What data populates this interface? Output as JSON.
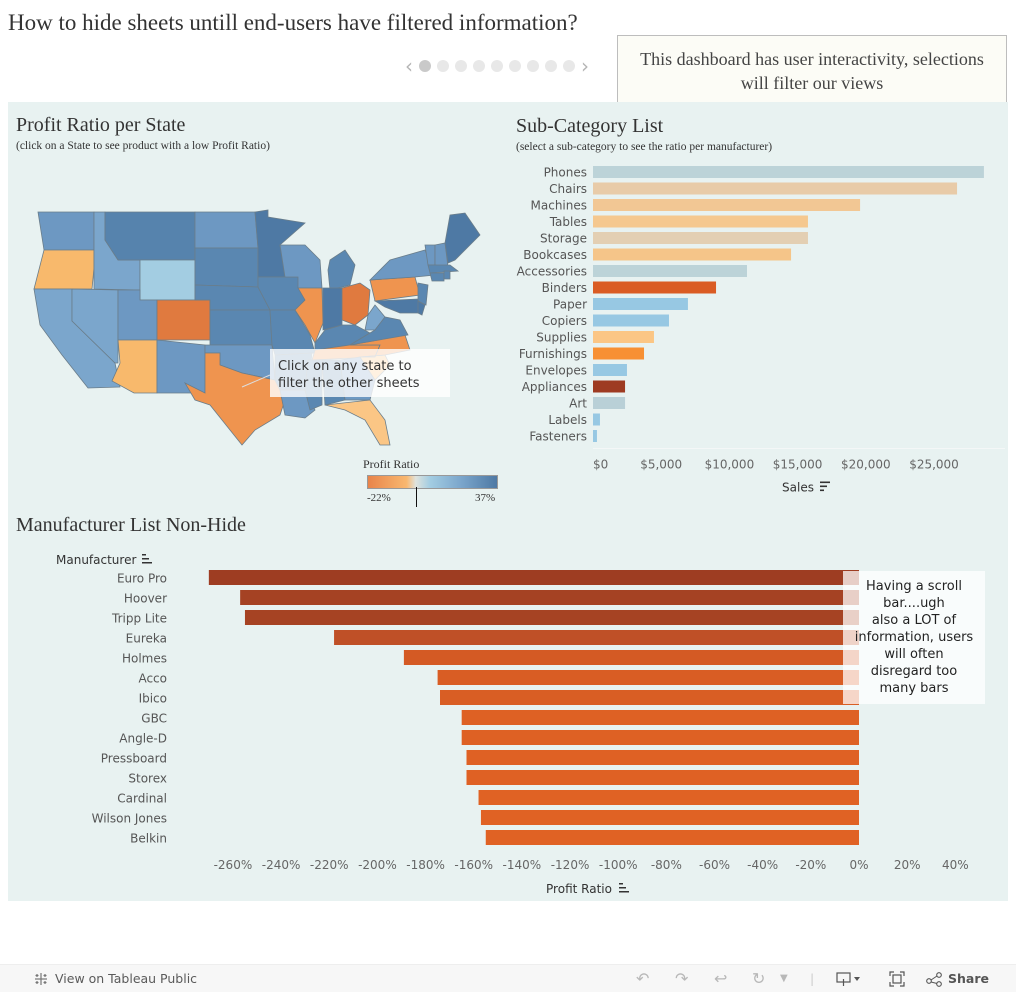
{
  "dashboard": {
    "title": "How to hide sheets untill end-users have filtered information?",
    "info_note": "This dashboard has user interactivity, selections will filter our views",
    "pager": {
      "total_dots": 9,
      "active_index": 0,
      "prev_icon": "chevron-left-icon",
      "next_icon": "chevron-right-icon"
    }
  },
  "map_panel": {
    "title": "Profit Ratio per State",
    "subtitle": "(click on a State to see product with a low Profit Ratio)",
    "tooltip": "Click on any state to filter the other sheets",
    "legend": {
      "title": "Profit Ratio",
      "min_label": "-22%",
      "max_label": "37%",
      "min": -0.22,
      "max": 0.37,
      "marker_value": 0.0
    },
    "colors": {
      "negative_strong": "#e07a3f",
      "negative_light": "#f8b96c",
      "neutral": "#a3cde2",
      "positive_mid": "#7ba6cc",
      "positive_strong": "#4e79a4"
    },
    "negative_states": [
      "Oregon",
      "Arizona",
      "Colorado",
      "Texas",
      "Illinois",
      "Ohio",
      "Pennsylvania",
      "Tennessee",
      "North Carolina",
      "Florida"
    ]
  },
  "subcategory_panel": {
    "title": "Sub-Category List",
    "subtitle": "(select a sub-category to see the ratio per manufacturer)",
    "x_axis_label": "Sales",
    "sort_icon": "sort-descending-icon"
  },
  "manufacturer_panel": {
    "title": "Manufacturer List Non-Hide",
    "row_header": "Manufacturer",
    "x_axis_label": "Profit Ratio",
    "sort_icon": "sort-icon",
    "note": "Having a scroll bar....ugh also a LOT of information, users will often disregard too many bars",
    "note_lines": [
      "Having a scroll",
      "bar....ugh",
      "also a LOT of",
      "information, users",
      "will often",
      "disregard too",
      "many bars"
    ]
  },
  "chart_data": [
    {
      "type": "bar",
      "orientation": "horizontal",
      "title": "Sub-Category List",
      "xlabel": "Sales",
      "ylabel": "",
      "xlim": [
        0,
        30000
      ],
      "x_ticks": [
        "$0",
        "$5,000",
        "$10,000",
        "$15,000",
        "$20,000",
        "$25,000"
      ],
      "x_tick_values": [
        0,
        5000,
        10000,
        15000,
        20000,
        25000
      ],
      "categories": [
        "Phones",
        "Chairs",
        "Machines",
        "Tables",
        "Storage",
        "Bookcases",
        "Accessories",
        "Binders",
        "Paper",
        "Copiers",
        "Supplies",
        "Furnishings",
        "Envelopes",
        "Appliances",
        "Art",
        "Labels",
        "Fasteners"
      ],
      "values": [
        28660,
        26690,
        19580,
        15760,
        15760,
        14520,
        11290,
        9020,
        6960,
        5570,
        4470,
        3740,
        2490,
        2350,
        2350,
        510,
        290
      ],
      "colors": [
        "#bcd3d8",
        "#e8cba8",
        "#f2c794",
        "#f5c88f",
        "#e3cfb3",
        "#f5c589",
        "#bcd3d8",
        "#da5c24",
        "#97c8e3",
        "#97c8e3",
        "#fbc685",
        "#f79034",
        "#97c8e3",
        "#9e3b22",
        "#b9d0d7",
        "#97c8e3",
        "#97c8e3"
      ],
      "grid": false
    },
    {
      "type": "bar",
      "orientation": "horizontal",
      "title": "Manufacturer List Non-Hide",
      "xlabel": "Profit Ratio",
      "ylabel": "Manufacturer",
      "xlim": [
        -2.75,
        0.45
      ],
      "x_ticks": [
        "-260%",
        "-240%",
        "-220%",
        "-200%",
        "-180%",
        "-160%",
        "-140%",
        "-120%",
        "-100%",
        "-80%",
        "-60%",
        "-40%",
        "-20%",
        "0%",
        "20%",
        "40%"
      ],
      "x_tick_values": [
        -2.6,
        -2.4,
        -2.2,
        -2.0,
        -1.8,
        -1.6,
        -1.4,
        -1.2,
        -1.0,
        -0.8,
        -0.6,
        -0.4,
        -0.2,
        0,
        0.2,
        0.4
      ],
      "categories": [
        "Euro Pro",
        "Hoover",
        "Tripp Lite",
        "Eureka",
        "Holmes",
        "Acco",
        "Ibico",
        "GBC",
        "Angle-D",
        "Pressboard",
        "Storex",
        "Cardinal",
        "Wilson Jones",
        "Belkin"
      ],
      "values": [
        -2.7,
        -2.57,
        -2.55,
        -2.18,
        -1.89,
        -1.75,
        -1.74,
        -1.65,
        -1.65,
        -1.63,
        -1.63,
        -1.58,
        -1.57,
        -1.55
      ],
      "colors": [
        "#9e3d22",
        "#a54223",
        "#a64323",
        "#bf5027",
        "#d45a24",
        "#d95d24",
        "#d95e24",
        "#de6124",
        "#de6124",
        "#df6124",
        "#df6124",
        "#e06224",
        "#e06224",
        "#e06224"
      ],
      "grid": false
    }
  ],
  "footer": {
    "view_on_label": "View on Tableau Public",
    "view_on_icon": "tableau-logo-icon",
    "share_label": "Share",
    "icons": [
      "undo-icon",
      "redo-icon",
      "revert-icon",
      "refresh-icon",
      "dropdown-arrow-icon",
      "download-icon",
      "fullscreen-icon",
      "share-icon"
    ]
  }
}
